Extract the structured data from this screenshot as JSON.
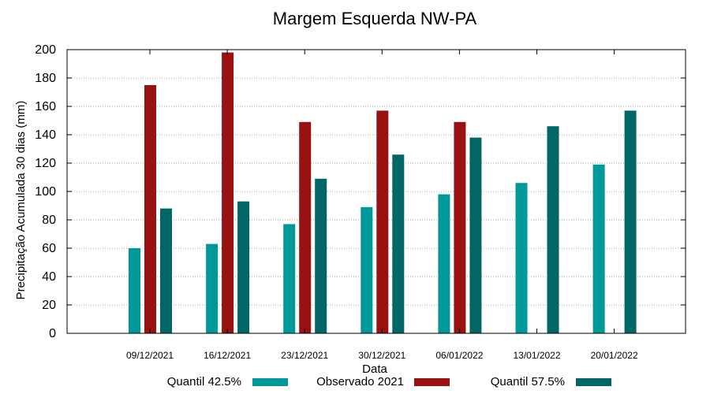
{
  "chart_data": {
    "type": "bar",
    "title": "Margem Esquerda NW-PA",
    "xlabel": "Data",
    "ylabel": "Precipitação Acumulada 30 dias (mm)",
    "ylim": [
      0,
      200
    ],
    "yticks": [
      0,
      20,
      40,
      60,
      80,
      100,
      120,
      140,
      160,
      180,
      200
    ],
    "grid": true,
    "legend_position": "bottom",
    "categories": [
      "09/12/2021",
      "16/12/2021",
      "23/12/2021",
      "30/12/2021",
      "06/01/2022",
      "13/01/2022",
      "20/01/2022"
    ],
    "series": [
      {
        "name": "Quantil 42.5%",
        "color": "#009999",
        "values": [
          60,
          63,
          77,
          89,
          98,
          106,
          119
        ]
      },
      {
        "name": "Observado 2021",
        "color": "#991111",
        "values": [
          175,
          198,
          149,
          157,
          149,
          null,
          null
        ]
      },
      {
        "name": "Quantil 57.5%",
        "color": "#006666",
        "values": [
          88,
          93,
          109,
          126,
          138,
          146,
          157
        ]
      }
    ]
  }
}
